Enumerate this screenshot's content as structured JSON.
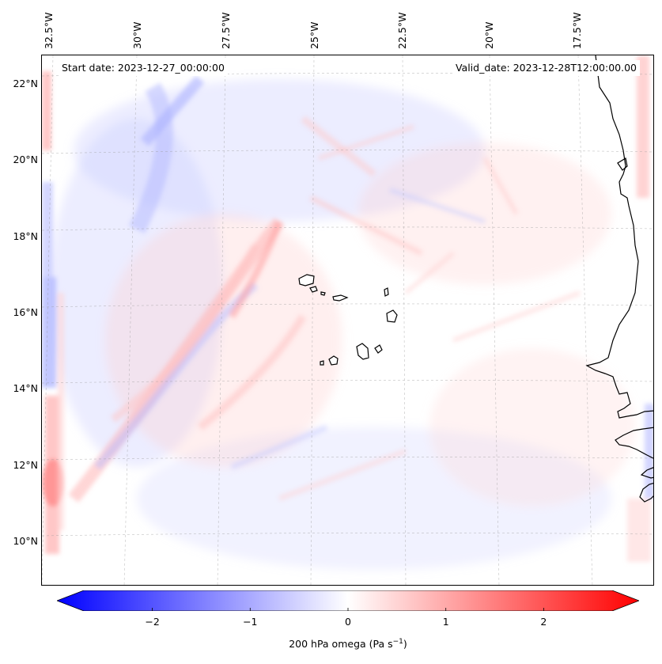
{
  "map": {
    "start_date": "Start date: 2023-12-27_00:00:00",
    "valid_date": "Valid_date: 2023-12-28T12:00:00.00",
    "lon_labels": [
      "32.5°W",
      "30°W",
      "27.5°W",
      "25°W",
      "22.5°W",
      "20°W",
      "17.5°W"
    ],
    "lat_labels": [
      "22°N",
      "20°N",
      "18°N",
      "16°N",
      "14°N",
      "12°N",
      "10°N"
    ],
    "colors": {
      "negative": "#0000ff",
      "positive": "#ff0000",
      "neutral": "#ffffff",
      "coast": "#000000",
      "grid": "#9a9a9a"
    }
  },
  "colorbar": {
    "ticks": [
      "−2",
      "−1",
      "0",
      "1",
      "2"
    ],
    "tick_values": [
      -2,
      -1,
      0,
      1,
      2
    ],
    "range": [
      -2.7,
      2.7
    ],
    "label_prefix": "200 hPa omega (Pa s",
    "label_exp": "−1",
    "label_suffix": ")"
  }
}
